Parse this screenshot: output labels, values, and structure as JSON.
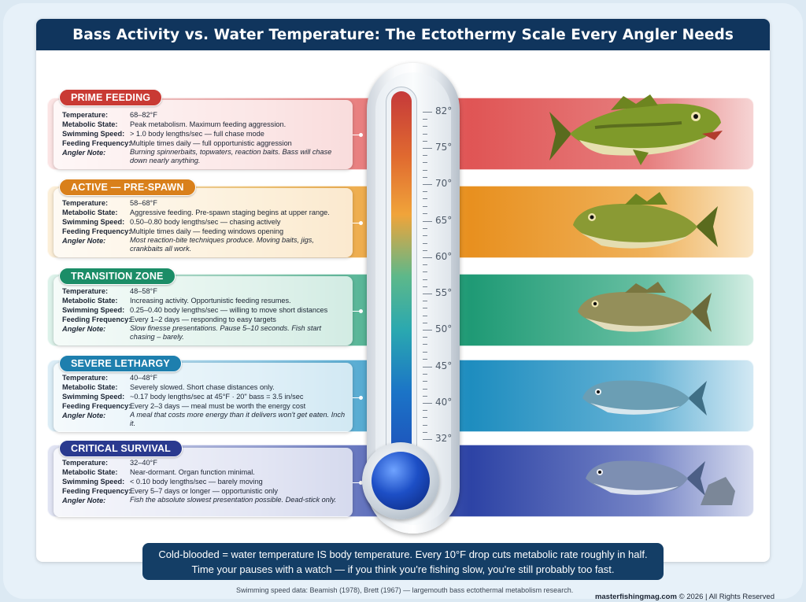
{
  "title": "Bass Activity vs. Water Temperature: The Ectothermy Scale Every Angler Needs",
  "field_labels": {
    "temperature": "Temperature:",
    "metabolic": "Metabolic State:",
    "speed": "Swimming Speed:",
    "frequency": "Feeding Frequency:",
    "note": "Angler Note:"
  },
  "zones": [
    {
      "name": "PRIME FEEDING",
      "temperature": "68–82°F",
      "metabolic": "Peak metabolism. Maximum feeding aggression.",
      "speed": "> 1.0 body lengths/sec — full chase mode",
      "frequency": "Multiple times daily — full opportunistic aggression",
      "note": "Burning spinnerbaits, topwaters, reaction baits. Bass will chase down nearly anything."
    },
    {
      "name": "ACTIVE — PRE-SPAWN",
      "temperature": "58–68°F",
      "metabolic": "Aggressive feeding. Pre-spawn staging begins at upper range.",
      "speed": "0.50–0.80 body lengths/sec — chasing actively",
      "frequency": "Multiple times daily — feeding windows opening",
      "note": "Most reaction-bite techniques produce. Moving baits, jigs, crankbaits all work."
    },
    {
      "name": "TRANSITION ZONE",
      "temperature": "48–58°F",
      "metabolic": "Increasing activity. Opportunistic feeding resumes.",
      "speed": "0.25–0.40 body lengths/sec — willing to move short distances",
      "frequency": "Every 1–2 days — responding to easy targets",
      "note": "Slow finesse presentations. Pause 5–10 seconds. Fish start chasing – barely."
    },
    {
      "name": "SEVERE LETHARGY",
      "temperature": "40–48°F",
      "metabolic": "Severely slowed. Short chase distances only.",
      "speed": "~0.17 body lengths/sec at 45°F · 20\" bass = 3.5 in/sec",
      "frequency": "Every 2–3 days — meal must be worth the energy cost",
      "note": "A meal that costs more energy than it delivers won't get eaten. Inch it."
    },
    {
      "name": "CRITICAL SURVIVAL",
      "temperature": "32–40°F",
      "metabolic": "Near-dormant. Organ function minimal.",
      "speed": "< 0.10 body lengths/sec — barely moving",
      "frequency": "Every 5–7 days or longer — opportunistic only",
      "note": "Fish the absolute slowest presentation possible. Dead-stick only."
    }
  ],
  "thermometer_labels": [
    "82°",
    "75°",
    "70°",
    "65°",
    "60°",
    "55°",
    "50°",
    "45°",
    "40°",
    "32°"
  ],
  "icons": [
    "bass-fish-icon",
    "rock-icon"
  ],
  "colors": {
    "prime": "#c93a34",
    "active": "#d9801b",
    "transition": "#1b8d67",
    "lethargy": "#1e7fae",
    "survival": "#2a3a8f",
    "header": "#10355d"
  },
  "bottom_message": [
    "Cold-blooded = water temperature IS body temperature. Every 10°F drop cuts metabolic rate roughly in half.",
    "Time your pauses with a watch — if you think you're fishing slow, you're still probably too fast."
  ],
  "credit": "Swimming speed data: Beamish (1978), Brett (1967) — largemouth bass ectothermal metabolism research.",
  "copyright_site": "masterfishingmag.com",
  "copyright_rest": " © 2026 | All Rights Reserved"
}
